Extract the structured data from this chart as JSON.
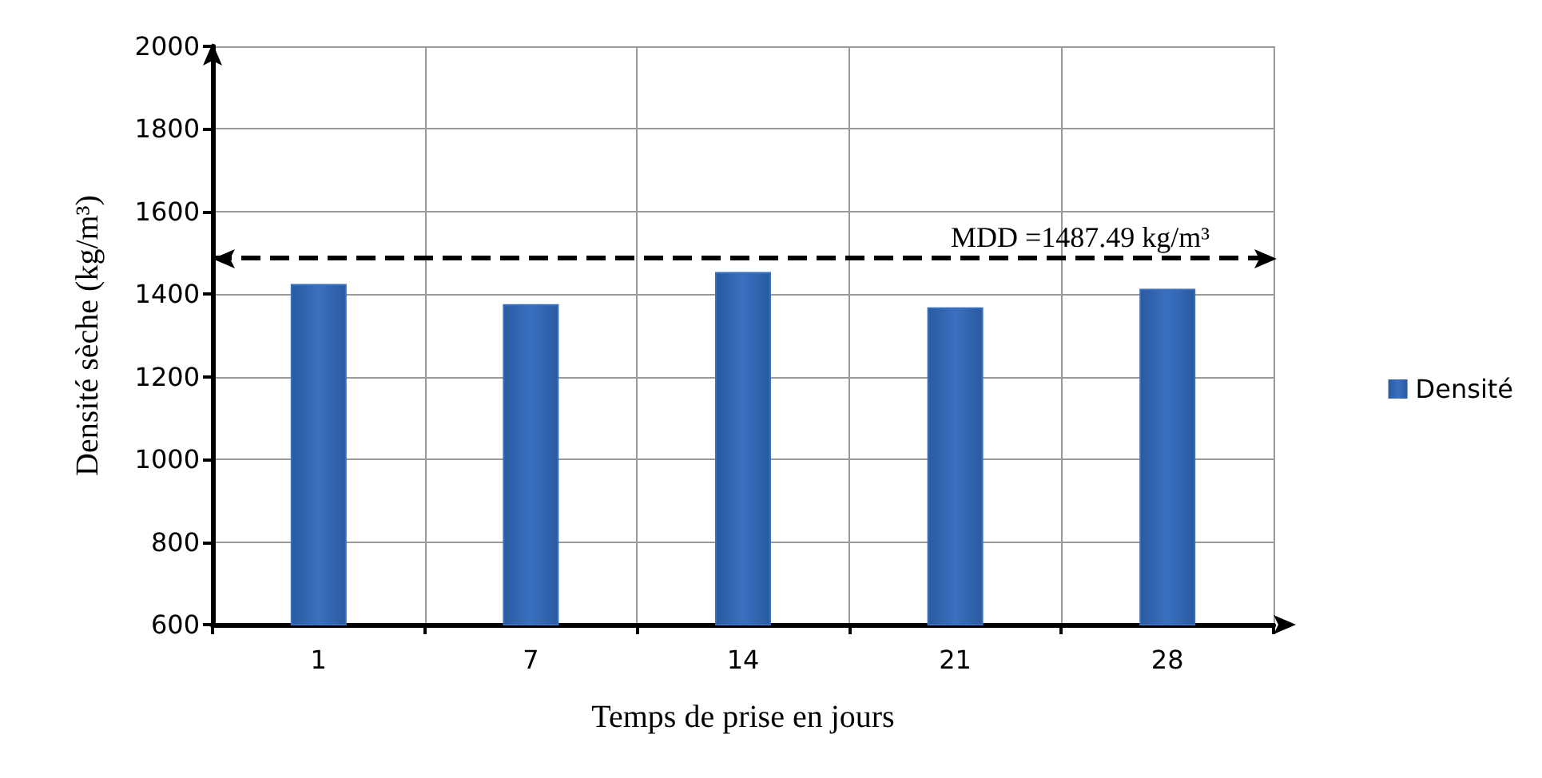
{
  "chart_data": {
    "type": "bar",
    "xlabel": "Temps de prise en jours",
    "ylabel": "Densité sèche (kg/m³)",
    "categories": [
      "1",
      "7",
      "14",
      "21",
      "28"
    ],
    "series": [
      {
        "name": "Densité",
        "color": "#3a70c0",
        "values": [
          1423,
          1374,
          1452,
          1366,
          1411
        ]
      }
    ],
    "ylim": [
      600,
      2000
    ],
    "yticks": [
      600,
      800,
      1000,
      1200,
      1400,
      1600,
      1800,
      2000
    ],
    "grid": true,
    "legend": "right",
    "ref_lines": [
      {
        "axis": "y",
        "value": 1487.49,
        "label": "MDD =1487.49 kg/m³",
        "color": "#000000",
        "line_style": "dashed"
      }
    ]
  }
}
